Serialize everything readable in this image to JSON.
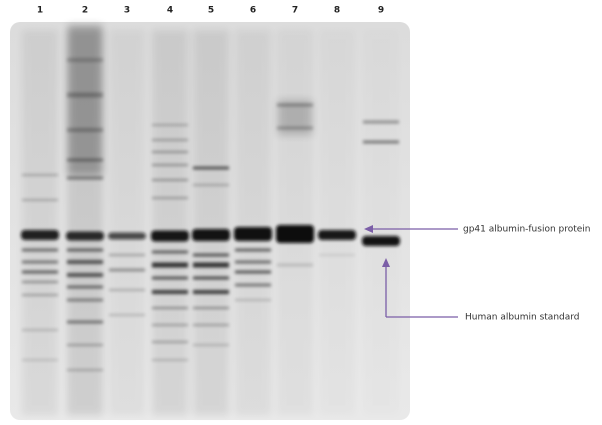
{
  "lanes": [
    "1",
    "2",
    "3",
    "4",
    "5",
    "6",
    "7",
    "8",
    "9"
  ],
  "annotations": [
    {
      "label": "gp41 albumin-fusion protein"
    },
    {
      "label": "Human albumin standard"
    }
  ]
}
